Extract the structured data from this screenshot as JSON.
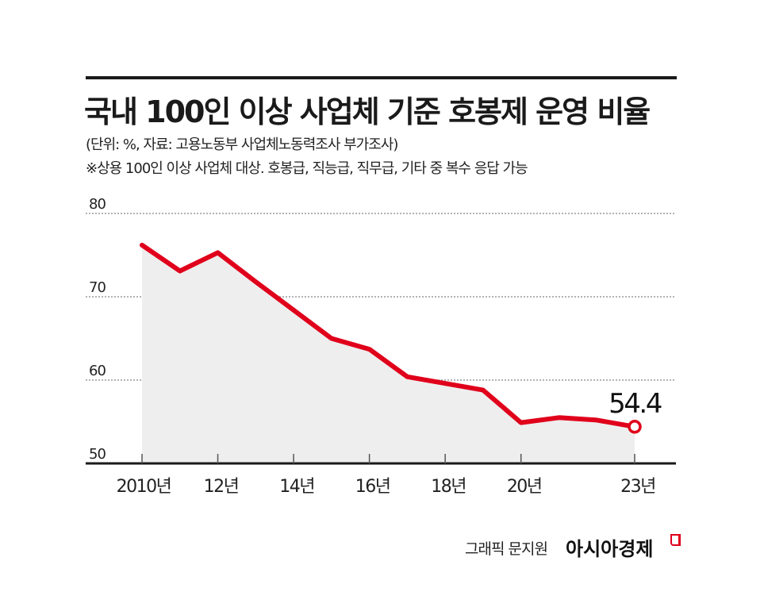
{
  "header": {
    "title": "국내 100인 이상 사업체 기준 호봉제 운영 비율",
    "subtitle": "(단위: %, 자료: 고용노동부 사업체노동력조사 부가조사)",
    "note": "※상용 100인 이상 사업체 대상. 호봉급, 직능급, 직무급, 기타 중 복수 응답 가능"
  },
  "footer": {
    "credit": "그래픽 문지원",
    "brand": "아시아경제"
  },
  "colors": {
    "line": "#e0001b",
    "area": "#eeeeee",
    "grid": "#999999",
    "axis": "#1a1a1a"
  },
  "axis": {
    "y_ticks": [
      "80",
      "70",
      "60",
      "50"
    ],
    "x_ticks": [
      "2010년",
      "12년",
      "14년",
      "16년",
      "18년",
      "20년",
      "23년"
    ]
  },
  "annotation": {
    "last_value": "54.4"
  },
  "chart_data": {
    "type": "area",
    "title": "국내 100인 이상 사업체 기준 호봉제 운영 비율",
    "subtitle": "(단위: %, 자료: 고용노동부 사업체노동력조사 부가조사)",
    "note": "※상용 100인 이상 사업체 대상. 호봉급, 직능급, 직무급, 기타 중 복수 응답 가능",
    "x": [
      2010,
      2011,
      2012,
      2013,
      2014,
      2015,
      2016,
      2017,
      2018,
      2019,
      2020,
      2021,
      2022,
      2023
    ],
    "series": [
      {
        "name": "호봉제 운영 비율",
        "values": [
          76.2,
          73.1,
          75.3,
          71.8,
          68.4,
          65.0,
          63.7,
          60.4,
          59.6,
          58.8,
          54.9,
          55.5,
          55.2,
          54.4
        ]
      }
    ],
    "x_tick_labels": [
      "2010년",
      "12년",
      "14년",
      "16년",
      "18년",
      "20년",
      "23년"
    ],
    "y_tick_labels": [
      "50",
      "60",
      "70",
      "80"
    ],
    "xlabel": "",
    "ylabel": "",
    "ylim": [
      50,
      80
    ],
    "grid": true,
    "grid_style": "dotted horizontal",
    "annotations": [
      {
        "x": 2023,
        "y": 54.4,
        "text": "54.4"
      }
    ],
    "legend": null
  }
}
